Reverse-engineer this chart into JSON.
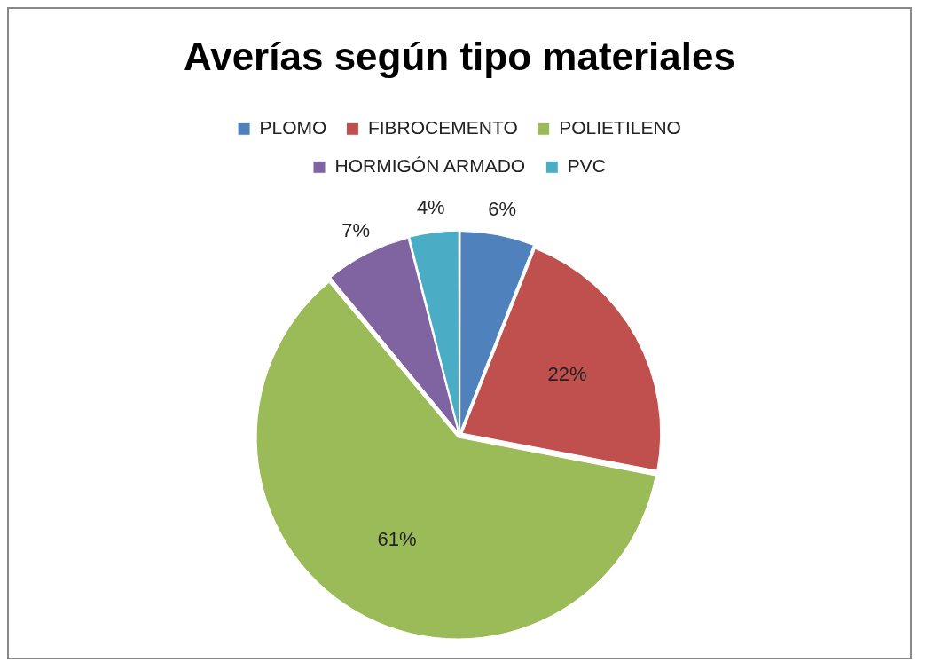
{
  "chart_data": {
    "type": "pie",
    "title": "Averías según tipo materiales",
    "categories": [
      "PLOMO",
      "FIBROCEMENTO",
      "POLIETILENO",
      "HORMIGÓN ARMADO",
      "PVC"
    ],
    "values": [
      6,
      22,
      61,
      7,
      4
    ],
    "colors": [
      "#4f81bd",
      "#c0504d",
      "#9bbb59",
      "#8064a2",
      "#4bacc6"
    ],
    "value_labels": [
      "6%",
      "22%",
      "61%",
      "7%",
      "4%"
    ],
    "legend": "top"
  }
}
